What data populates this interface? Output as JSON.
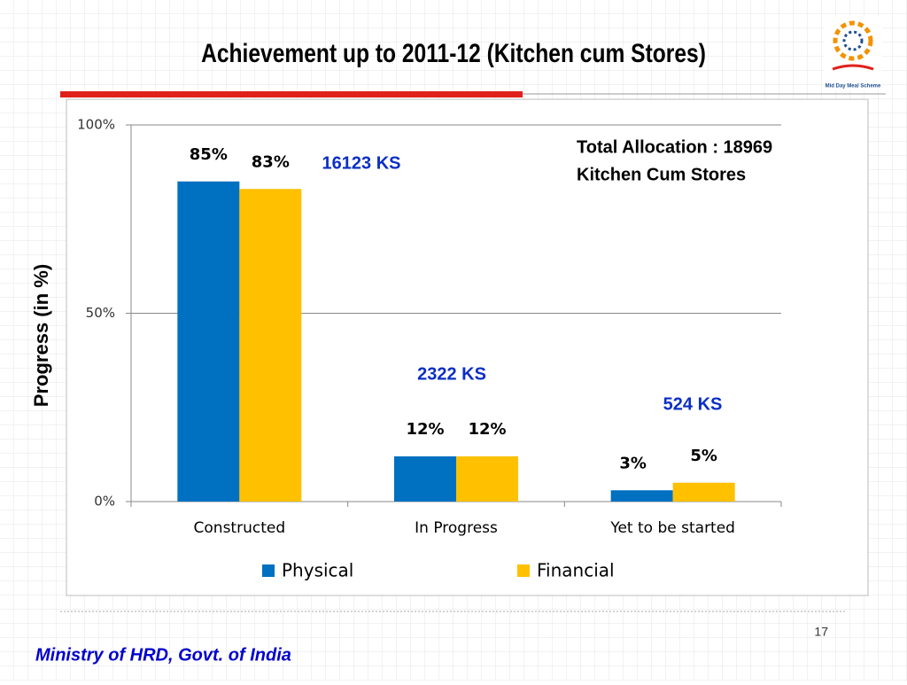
{
  "chart_data": {
    "type": "bar",
    "title": "Achievement up to 2011-12 (Kitchen cum Stores)",
    "y_label": "Progress (in %)",
    "categories": [
      "Constructed",
      "In Progress",
      "Yet to be started"
    ],
    "series": [
      {
        "name": "Physical",
        "color": "#0070c0",
        "values": [
          85,
          12,
          3
        ],
        "value_labels": [
          "85%",
          "12%",
          "3%"
        ]
      },
      {
        "name": "Financial",
        "color": "#ffc000",
        "values": [
          83,
          12,
          5
        ],
        "value_labels": [
          "83%",
          "12%",
          "5%"
        ]
      }
    ],
    "ylim": [
      0,
      100
    ],
    "yticks": [
      {
        "value": 0,
        "label": "0%"
      },
      {
        "value": 50,
        "label": "50%"
      },
      {
        "value": 100,
        "label": "100%"
      }
    ],
    "grid": true,
    "legend": "bottom",
    "annotations": [
      "16123 KS",
      "2322 KS",
      "524 KS"
    ],
    "note": [
      "Total Allocation : 18969",
      "Kitchen Cum Stores"
    ]
  },
  "logo": {
    "text": "Mid Day Meal Scheme"
  },
  "footer": {
    "text": "Ministry of HRD, Govt. of India",
    "page": "17"
  }
}
